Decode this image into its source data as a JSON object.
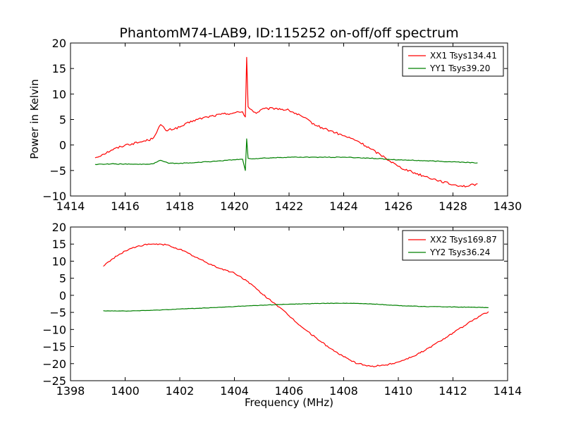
{
  "chart_data": {
    "type": "line",
    "title": "PhantomM74-LAB9, ID:115252 on-off/off spectrum",
    "ylabel": "Power in Kelvin",
    "xlabel": "Frequency (MHz)",
    "colors": {
      "red": "#ff0000",
      "green": "#008000"
    },
    "panels": [
      {
        "xlim": [
          1414,
          1430
        ],
        "ylim": [
          -10,
          20
        ],
        "xticks": [
          1414,
          1416,
          1418,
          1420,
          1422,
          1424,
          1426,
          1428,
          1430
        ],
        "yticks": [
          -10,
          -5,
          0,
          5,
          10,
          15,
          20
        ],
        "legend_position": "top-right",
        "series": [
          {
            "name": "XX1 Tsys134.41",
            "color": "#ff0000",
            "x": [
              1414.9,
              1415.2,
              1415.5,
              1416.0,
              1416.5,
              1417.0,
              1417.3,
              1417.5,
              1418.0,
              1418.5,
              1419.0,
              1419.5,
              1420.0,
              1420.3,
              1420.4,
              1420.45,
              1420.5,
              1420.6,
              1420.8,
              1421.0,
              1421.5,
              1422.0,
              1422.5,
              1423.0,
              1423.5,
              1424.0,
              1424.5,
              1425.0,
              1425.5,
              1426.0,
              1426.5,
              1427.0,
              1427.5,
              1428.0,
              1428.5,
              1428.9
            ],
            "y": [
              -2.5,
              -1.8,
              -1.0,
              0.0,
              0.5,
              1.2,
              4.0,
              2.8,
              3.5,
              4.8,
              5.5,
              6.0,
              6.3,
              6.5,
              5.5,
              17.2,
              7.5,
              7.0,
              6.2,
              7.0,
              7.2,
              6.8,
              5.5,
              3.8,
              2.8,
              1.8,
              0.8,
              -0.8,
              -2.4,
              -4.2,
              -5.3,
              -6.2,
              -7.0,
              -7.8,
              -8.1,
              -7.6
            ]
          },
          {
            "name": "YY1 Tsys39.20",
            "color": "#008000",
            "x": [
              1414.9,
              1415.5,
              1416.5,
              1417.0,
              1417.3,
              1417.6,
              1418.0,
              1419.0,
              1420.0,
              1420.3,
              1420.4,
              1420.45,
              1420.5,
              1420.7,
              1421.0,
              1422.0,
              1423.0,
              1424.0,
              1425.0,
              1426.0,
              1427.0,
              1428.0,
              1428.9
            ],
            "y": [
              -3.8,
              -3.7,
              -3.8,
              -3.7,
              -3.0,
              -3.6,
              -3.6,
              -3.3,
              -2.9,
              -2.8,
              -5.0,
              1.2,
              -2.6,
              -2.7,
              -2.6,
              -2.4,
              -2.4,
              -2.4,
              -2.6,
              -2.9,
              -3.1,
              -3.3,
              -3.5
            ]
          }
        ]
      },
      {
        "xlim": [
          1398,
          1414
        ],
        "ylim": [
          -25,
          20
        ],
        "xticks": [
          1398,
          1400,
          1402,
          1404,
          1406,
          1408,
          1410,
          1412,
          1414
        ],
        "yticks": [
          -25,
          -20,
          -15,
          -10,
          -5,
          0,
          5,
          10,
          15,
          20
        ],
        "legend_position": "top-right",
        "series": [
          {
            "name": "XX2 Tsys169.87",
            "color": "#ff0000",
            "x": [
              1399.2,
              1399.5,
              1400.0,
              1400.5,
              1401.0,
              1401.5,
              1402.0,
              1402.5,
              1403.0,
              1403.5,
              1404.0,
              1404.5,
              1405.0,
              1405.5,
              1406.0,
              1406.5,
              1407.0,
              1407.5,
              1408.0,
              1408.5,
              1409.0,
              1409.5,
              1410.0,
              1410.5,
              1411.0,
              1411.5,
              1412.0,
              1412.5,
              1413.0,
              1413.3
            ],
            "y": [
              8.5,
              10.5,
              13.0,
              14.5,
              15.0,
              14.8,
              13.5,
              11.5,
              9.5,
              7.8,
              6.5,
              4.0,
              0.5,
              -2.5,
              -6.0,
              -9.5,
              -12.5,
              -15.5,
              -18.0,
              -20.0,
              -20.8,
              -20.5,
              -19.5,
              -18.0,
              -16.0,
              -13.5,
              -11.0,
              -8.5,
              -6.0,
              -4.8
            ]
          },
          {
            "name": "YY2 Tsys36.24",
            "color": "#008000",
            "x": [
              1399.2,
              1400.0,
              1401.0,
              1402.0,
              1403.0,
              1404.0,
              1405.0,
              1406.0,
              1407.0,
              1408.0,
              1409.0,
              1410.0,
              1411.0,
              1412.0,
              1413.3
            ],
            "y": [
              -4.5,
              -4.6,
              -4.4,
              -4.0,
              -3.7,
              -3.3,
              -2.9,
              -2.6,
              -2.4,
              -2.3,
              -2.5,
              -3.0,
              -3.3,
              -3.4,
              -3.6
            ]
          }
        ]
      }
    ]
  }
}
